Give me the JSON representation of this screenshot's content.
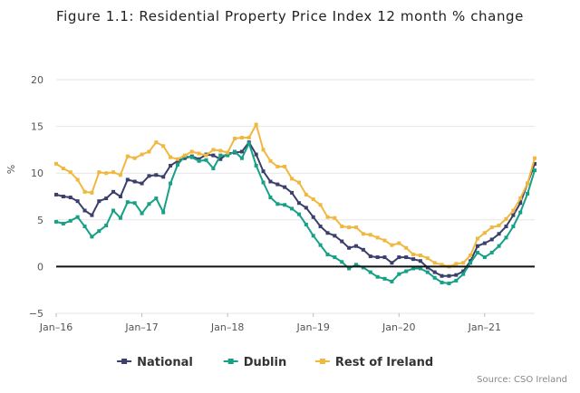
{
  "title": "Figure 1.1: Residential Property Price Index 12 month % change",
  "source": "Source: CSO Ireland",
  "chart_data": {
    "type": "line",
    "title": "Figure 1.1: Residential Property Price Index 12 month % change",
    "xlabel": "",
    "ylabel": "%",
    "ylim": [
      -5,
      20
    ],
    "yticks": [
      -5,
      0,
      5,
      10,
      15,
      20
    ],
    "xtick_labels": [
      "Jan-16",
      "Jan-17",
      "Jan-18",
      "Jan-19",
      "Jan-20",
      "Jan-21"
    ],
    "x_start": "Jan-16",
    "x_end": "Aug-21",
    "x": [
      "Jan-16",
      "Feb-16",
      "Mar-16",
      "Apr-16",
      "May-16",
      "Jun-16",
      "Jul-16",
      "Aug-16",
      "Sep-16",
      "Oct-16",
      "Nov-16",
      "Dec-16",
      "Jan-17",
      "Feb-17",
      "Mar-17",
      "Apr-17",
      "May-17",
      "Jun-17",
      "Jul-17",
      "Aug-17",
      "Sep-17",
      "Oct-17",
      "Nov-17",
      "Dec-17",
      "Jan-18",
      "Feb-18",
      "Mar-18",
      "Apr-18",
      "May-18",
      "Jun-18",
      "Jul-18",
      "Aug-18",
      "Sep-18",
      "Oct-18",
      "Nov-18",
      "Dec-18",
      "Jan-19",
      "Feb-19",
      "Mar-19",
      "Apr-19",
      "May-19",
      "Jun-19",
      "Jul-19",
      "Aug-19",
      "Sep-19",
      "Oct-19",
      "Nov-19",
      "Dec-19",
      "Jan-20",
      "Feb-20",
      "Mar-20",
      "Apr-20",
      "May-20",
      "Jun-20",
      "Jul-20",
      "Aug-20",
      "Sep-20",
      "Oct-20",
      "Nov-20",
      "Dec-20",
      "Jan-21",
      "Feb-21",
      "Mar-21",
      "Apr-21",
      "May-21",
      "Jun-21",
      "Jul-21",
      "Aug-21"
    ],
    "zero_line": true,
    "grid": "horizontal",
    "legend_position": "bottom",
    "series": [
      {
        "name": "National",
        "color": "#3a3f6b",
        "values": [
          7.7,
          7.5,
          7.4,
          7.0,
          6.0,
          5.5,
          7.0,
          7.3,
          8.0,
          7.5,
          9.3,
          9.1,
          8.9,
          9.7,
          9.8,
          9.6,
          10.8,
          11.3,
          11.6,
          11.8,
          11.5,
          12.0,
          11.9,
          11.5,
          12.1,
          12.2,
          12.3,
          13.3,
          12.0,
          10.2,
          9.1,
          8.8,
          8.5,
          7.9,
          6.8,
          6.3,
          5.3,
          4.3,
          3.6,
          3.3,
          2.7,
          2.0,
          2.2,
          1.8,
          1.1,
          1.0,
          1.0,
          0.4,
          1.0,
          1.0,
          0.8,
          0.6,
          -0.1,
          -0.6,
          -1.0,
          -1.0,
          -0.9,
          -0.5,
          0.6,
          2.2,
          2.5,
          2.9,
          3.5,
          4.3,
          5.5,
          6.8,
          8.9,
          11.0
        ]
      },
      {
        "name": "Dublin",
        "color": "#16a085",
        "values": [
          4.8,
          4.6,
          4.9,
          5.3,
          4.3,
          3.2,
          3.8,
          4.4,
          6.0,
          5.2,
          6.9,
          6.8,
          5.7,
          6.7,
          7.3,
          5.8,
          8.9,
          10.9,
          11.8,
          11.7,
          11.3,
          11.4,
          10.5,
          11.9,
          11.9,
          12.3,
          11.6,
          13.2,
          10.8,
          9.0,
          7.4,
          6.7,
          6.6,
          6.2,
          5.6,
          4.5,
          3.3,
          2.3,
          1.3,
          1.0,
          0.5,
          -0.2,
          0.2,
          -0.1,
          -0.6,
          -1.1,
          -1.3,
          -1.6,
          -0.8,
          -0.5,
          -0.2,
          -0.2,
          -0.6,
          -1.2,
          -1.7,
          -1.8,
          -1.5,
          -0.8,
          0.4,
          1.5,
          1.0,
          1.5,
          2.2,
          3.1,
          4.3,
          5.8,
          7.8,
          10.3
        ]
      },
      {
        "name": "Rest of Ireland",
        "color": "#f0b840",
        "values": [
          11.0,
          10.5,
          10.1,
          9.3,
          8.0,
          7.9,
          10.1,
          10.0,
          10.1,
          9.8,
          11.8,
          11.6,
          12.0,
          12.3,
          13.3,
          12.9,
          11.7,
          11.5,
          11.9,
          12.3,
          12.1,
          11.9,
          12.5,
          12.4,
          12.2,
          13.7,
          13.8,
          13.8,
          15.2,
          12.5,
          11.3,
          10.7,
          10.7,
          9.4,
          9.0,
          7.7,
          7.2,
          6.6,
          5.3,
          5.2,
          4.3,
          4.2,
          4.2,
          3.5,
          3.4,
          3.1,
          2.8,
          2.3,
          2.5,
          2.0,
          1.3,
          1.2,
          0.9,
          0.4,
          0.2,
          0.0,
          0.3,
          0.4,
          1.2,
          3.0,
          3.6,
          4.2,
          4.4,
          5.1,
          6.0,
          7.3,
          8.9,
          11.6
        ]
      }
    ]
  }
}
